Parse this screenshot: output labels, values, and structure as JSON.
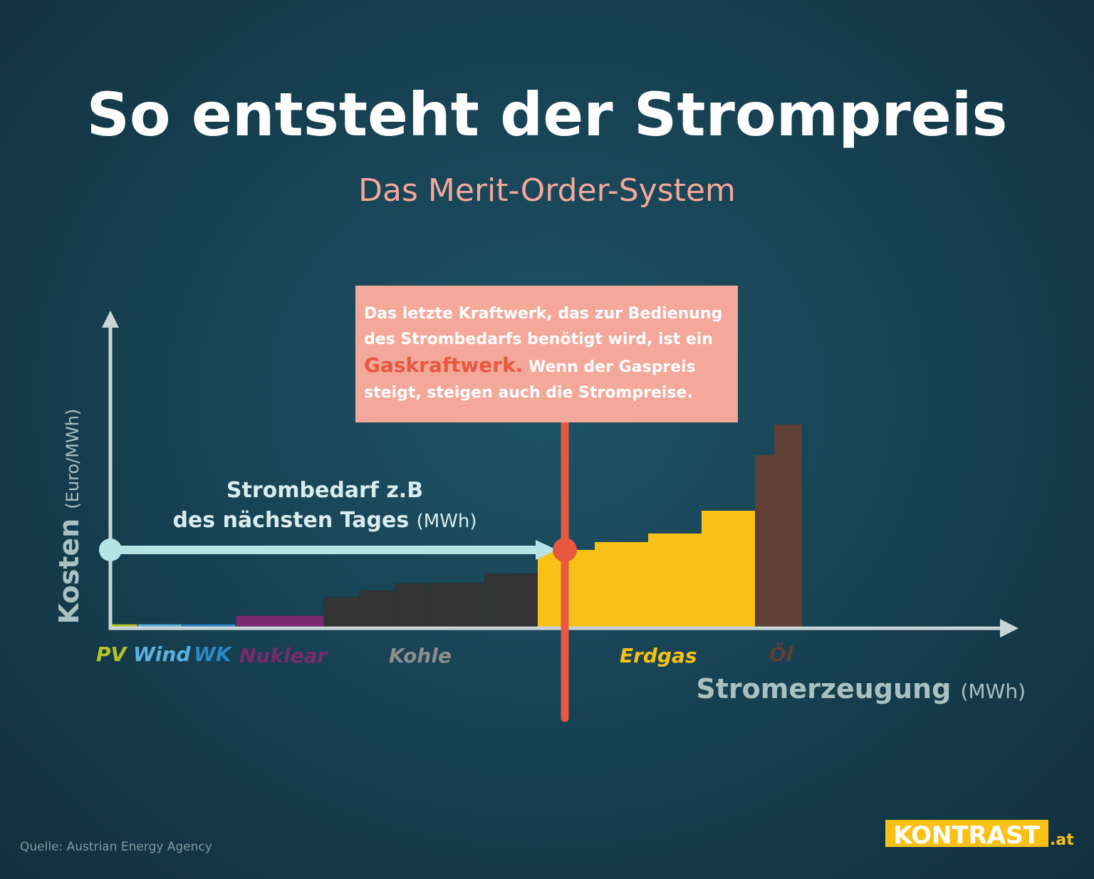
{
  "header": {
    "title": "So entsteht der Strompreis",
    "subtitle": "Das Merit-Order-System"
  },
  "callout": {
    "text_1": "Das letzte Kraftwerk, das zur Bedienung des Strombedarfs benötigt wird, ist ein",
    "highlight": "Gaskraftwerk.",
    "text_2": "Wenn der Gaspreis steigt, steigen auch die Strompreise."
  },
  "demand": {
    "line_1": "Strombedarf z.B",
    "line_2": "des nächsten Tages",
    "unit": "(MWh)"
  },
  "y_axis": {
    "label": "Kosten",
    "unit": "(Euro/MWh)"
  },
  "x_axis": {
    "label": "Stromerzeugung",
    "unit": "(MWh)"
  },
  "sources": [
    "PV",
    "Wind",
    "WK",
    "Nuklear",
    "Kohle",
    "Erdgas",
    "Öl"
  ],
  "footer": {
    "source": "Quelle: Austrian Energy Agency",
    "logo": "KONTRAST",
    "logo_suffix": ".at"
  }
}
